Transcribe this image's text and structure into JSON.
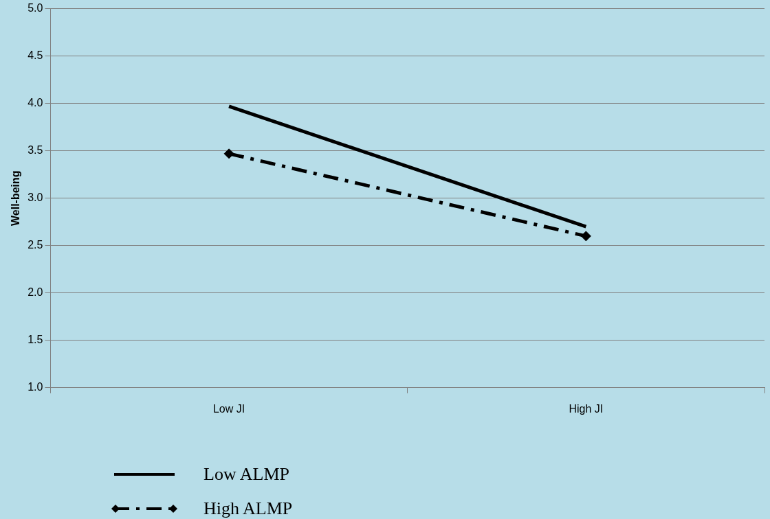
{
  "chart_data": {
    "type": "line",
    "ylabel": "Well-being",
    "categories": [
      "Low JI",
      "High JI"
    ],
    "series": [
      {
        "name": "Low ALMP",
        "color": "#000000",
        "values": [
          3.97,
          2.7
        ],
        "marker": "none",
        "line_style": "solid"
      },
      {
        "name": "High ALMP",
        "color": "#000000",
        "values": [
          3.47,
          2.6
        ],
        "marker": "diamond",
        "line_style": "dashed"
      }
    ],
    "ylim": [
      1,
      5
    ],
    "yticks": [
      {
        "value": 1,
        "label": "1.0"
      },
      {
        "value": 1.5,
        "label": "1.5"
      },
      {
        "value": 2,
        "label": "2.0"
      },
      {
        "value": 2.5,
        "label": "2.5"
      },
      {
        "value": 3,
        "label": "3.0"
      },
      {
        "value": 3.5,
        "label": "3.5"
      },
      {
        "value": 4,
        "label": "4.0"
      },
      {
        "value": 4.5,
        "label": "4.5"
      },
      {
        "value": 5,
        "label": "5.0"
      }
    ],
    "grid": "y",
    "legend": "bottom left"
  }
}
